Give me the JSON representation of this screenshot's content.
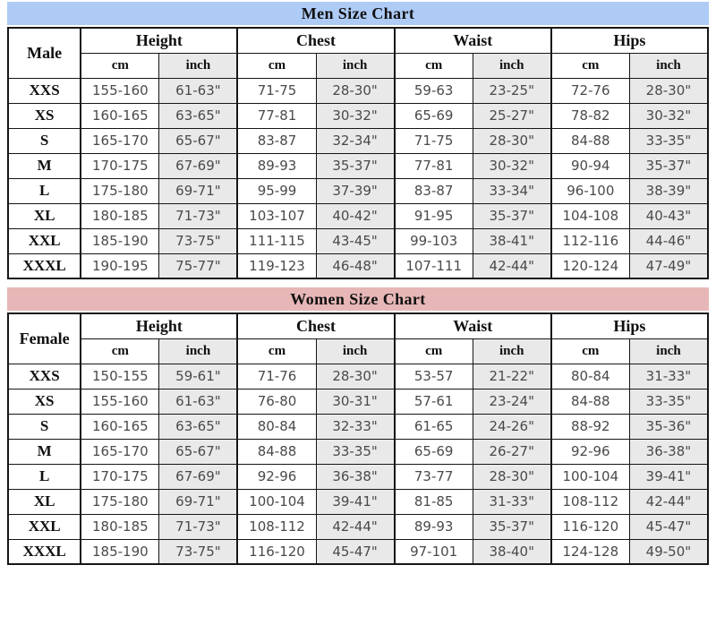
{
  "men": {
    "title": "Men Size Chart",
    "title_bg": "#aecbf6",
    "label_header": "Male",
    "groups": [
      "Height",
      "Chest",
      "Waist",
      "Hips"
    ],
    "unit_cm": "cm",
    "unit_inch": "inch",
    "columns": [
      "size",
      "height_cm",
      "height_in",
      "chest_cm",
      "chest_in",
      "waist_cm",
      "waist_in",
      "hips_cm",
      "hips_in"
    ],
    "rows": [
      {
        "size": "XXS",
        "height_cm": "155-160",
        "height_in": "61-63\"",
        "chest_cm": "71-75",
        "chest_in": "28-30\"",
        "waist_cm": "59-63",
        "waist_in": "23-25\"",
        "hips_cm": "72-76",
        "hips_in": "28-30\""
      },
      {
        "size": "XS",
        "height_cm": "160-165",
        "height_in": "63-65\"",
        "chest_cm": "77-81",
        "chest_in": "30-32\"",
        "waist_cm": "65-69",
        "waist_in": "25-27\"",
        "hips_cm": "78-82",
        "hips_in": "30-32\""
      },
      {
        "size": "S",
        "height_cm": "165-170",
        "height_in": "65-67\"",
        "chest_cm": "83-87",
        "chest_in": "32-34\"",
        "waist_cm": "71-75",
        "waist_in": "28-30\"",
        "hips_cm": "84-88",
        "hips_in": "33-35\""
      },
      {
        "size": "M",
        "height_cm": "170-175",
        "height_in": "67-69\"",
        "chest_cm": "89-93",
        "chest_in": "35-37\"",
        "waist_cm": "77-81",
        "waist_in": "30-32\"",
        "hips_cm": "90-94",
        "hips_in": "35-37\""
      },
      {
        "size": "L",
        "height_cm": "175-180",
        "height_in": "69-71\"",
        "chest_cm": "95-99",
        "chest_in": "37-39\"",
        "waist_cm": "83-87",
        "waist_in": "33-34\"",
        "hips_cm": "96-100",
        "hips_in": "38-39\""
      },
      {
        "size": "XL",
        "height_cm": "180-185",
        "height_in": "71-73\"",
        "chest_cm": "103-107",
        "chest_in": "40-42\"",
        "waist_cm": "91-95",
        "waist_in": "35-37\"",
        "hips_cm": "104-108",
        "hips_in": "40-43\""
      },
      {
        "size": "XXL",
        "height_cm": "185-190",
        "height_in": "73-75\"",
        "chest_cm": "111-115",
        "chest_in": "43-45\"",
        "waist_cm": "99-103",
        "waist_in": "38-41\"",
        "hips_cm": "112-116",
        "hips_in": "44-46\""
      },
      {
        "size": "XXXL",
        "height_cm": "190-195",
        "height_in": "75-77\"",
        "chest_cm": "119-123",
        "chest_in": "46-48\"",
        "waist_cm": "107-111",
        "waist_in": "42-44\"",
        "hips_cm": "120-124",
        "hips_in": "47-49\""
      }
    ]
  },
  "women": {
    "title": "Women Size Chart",
    "title_bg": "#e7b7b7",
    "label_header": "Female",
    "groups": [
      "Height",
      "Chest",
      "Waist",
      "Hips"
    ],
    "unit_cm": "cm",
    "unit_inch": "inch",
    "columns": [
      "size",
      "height_cm",
      "height_in",
      "chest_cm",
      "chest_in",
      "waist_cm",
      "waist_in",
      "hips_cm",
      "hips_in"
    ],
    "rows": [
      {
        "size": "XXS",
        "height_cm": "150-155",
        "height_in": "59-61\"",
        "chest_cm": "71-76",
        "chest_in": "28-30\"",
        "waist_cm": "53-57",
        "waist_in": "21-22\"",
        "hips_cm": "80-84",
        "hips_in": "31-33\""
      },
      {
        "size": "XS",
        "height_cm": "155-160",
        "height_in": "61-63\"",
        "chest_cm": "76-80",
        "chest_in": "30-31\"",
        "waist_cm": "57-61",
        "waist_in": "23-24\"",
        "hips_cm": "84-88",
        "hips_in": "33-35\""
      },
      {
        "size": "S",
        "height_cm": "160-165",
        "height_in": "63-65\"",
        "chest_cm": "80-84",
        "chest_in": "32-33\"",
        "waist_cm": "61-65",
        "waist_in": "24-26\"",
        "hips_cm": "88-92",
        "hips_in": "35-36\""
      },
      {
        "size": "M",
        "height_cm": "165-170",
        "height_in": "65-67\"",
        "chest_cm": "84-88",
        "chest_in": "33-35\"",
        "waist_cm": "65-69",
        "waist_in": "26-27\"",
        "hips_cm": "92-96",
        "hips_in": "36-38\""
      },
      {
        "size": "L",
        "height_cm": "170-175",
        "height_in": "67-69\"",
        "chest_cm": "92-96",
        "chest_in": "36-38\"",
        "waist_cm": "73-77",
        "waist_in": "28-30\"",
        "hips_cm": "100-104",
        "hips_in": "39-41\""
      },
      {
        "size": "XL",
        "height_cm": "175-180",
        "height_in": "69-71\"",
        "chest_cm": "100-104",
        "chest_in": "39-41\"",
        "waist_cm": "81-85",
        "waist_in": "31-33\"",
        "hips_cm": "108-112",
        "hips_in": "42-44\""
      },
      {
        "size": "XXL",
        "height_cm": "180-185",
        "height_in": "71-73\"",
        "chest_cm": "108-112",
        "chest_in": "42-44\"",
        "waist_cm": "89-93",
        "waist_in": "35-37\"",
        "hips_cm": "116-120",
        "hips_in": "45-47\""
      },
      {
        "size": "XXXL",
        "height_cm": "185-190",
        "height_in": "73-75\"",
        "chest_cm": "116-120",
        "chest_in": "45-47\"",
        "waist_cm": "97-101",
        "waist_in": "38-40\"",
        "hips_cm": "124-128",
        "hips_in": "49-50\""
      }
    ]
  }
}
